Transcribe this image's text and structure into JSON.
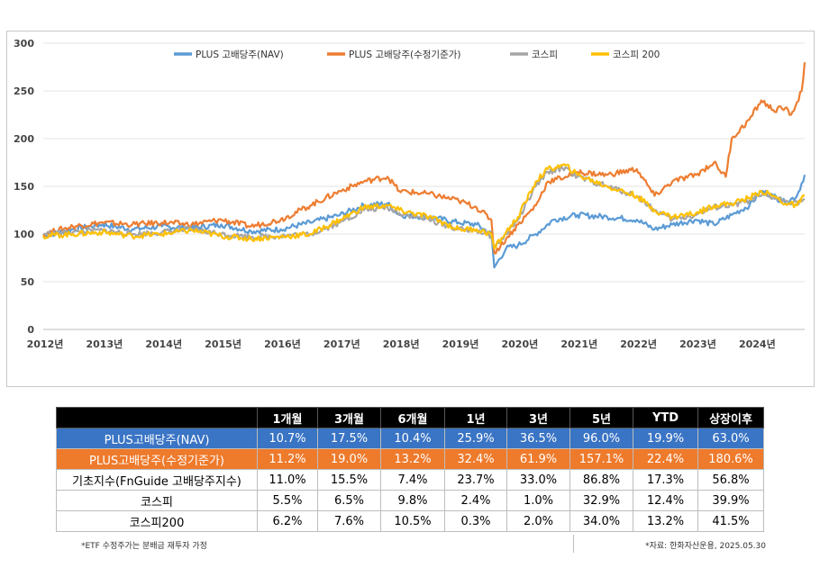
{
  "chart_data": {
    "type": "line",
    "title": "",
    "xlabel": "",
    "ylabel": "",
    "ylim": [
      0,
      300
    ],
    "yticks": [
      0,
      50,
      100,
      150,
      200,
      250,
      300
    ],
    "xlim": [
      2012.0,
      2024.83
    ],
    "xticks": [
      2012,
      2013,
      2014,
      2015,
      2016,
      2017,
      2018,
      2019,
      2020,
      2021,
      2022,
      2023,
      2024
    ],
    "xtick_labels": [
      "2012년",
      "2013년",
      "2014년",
      "2015년",
      "2016년",
      "2017년",
      "2018년",
      "2019년",
      "2020년",
      "2021년",
      "2022년",
      "2023년",
      "2024년"
    ],
    "grid": "horizontal",
    "legend_position": "top-center",
    "series": [
      {
        "name": "PLUS 고배당주(NAV)",
        "color": "#5b9bd5",
        "x": [
          2012.0,
          2012.5,
          2013.0,
          2013.5,
          2014.0,
          2014.5,
          2015.0,
          2015.5,
          2016.0,
          2016.5,
          2017.0,
          2017.4,
          2017.8,
          2018.0,
          2018.5,
          2019.0,
          2019.3,
          2019.55,
          2019.6,
          2019.8,
          2020.0,
          2020.3,
          2020.6,
          2021.0,
          2021.5,
          2022.0,
          2022.3,
          2022.6,
          2023.0,
          2023.3,
          2023.6,
          2023.9,
          2024.1,
          2024.3,
          2024.5,
          2024.7,
          2024.83
        ],
        "y": [
          98,
          105,
          110,
          105,
          108,
          106,
          110,
          103,
          105,
          112,
          120,
          130,
          132,
          120,
          118,
          112,
          110,
          100,
          65,
          85,
          88,
          100,
          115,
          120,
          118,
          115,
          105,
          110,
          115,
          110,
          120,
          130,
          145,
          140,
          133,
          140,
          162
        ]
      },
      {
        "name": "PLUS 고배당주(수정기준가)",
        "color": "#ed7d31",
        "x": [
          2012.0,
          2012.5,
          2013.0,
          2013.5,
          2014.0,
          2014.5,
          2015.0,
          2015.5,
          2016.0,
          2016.5,
          2017.0,
          2017.4,
          2017.8,
          2018.0,
          2018.5,
          2019.0,
          2019.3,
          2019.55,
          2019.6,
          2019.8,
          2020.0,
          2020.3,
          2020.5,
          2020.8,
          2021.0,
          2021.5,
          2022.0,
          2022.3,
          2022.6,
          2023.0,
          2023.3,
          2023.5,
          2023.6,
          2023.9,
          2024.1,
          2024.3,
          2024.5,
          2024.6,
          2024.7,
          2024.78,
          2024.83
        ],
        "y": [
          100,
          108,
          112,
          110,
          112,
          110,
          115,
          108,
          115,
          130,
          145,
          155,
          160,
          145,
          142,
          135,
          128,
          115,
          80,
          95,
          110,
          130,
          155,
          160,
          165,
          162,
          168,
          140,
          155,
          162,
          175,
          160,
          200,
          220,
          240,
          230,
          232,
          225,
          238,
          250,
          280
        ]
      },
      {
        "name": "코스피",
        "color": "#a5a5a5",
        "x": [
          2012.0,
          2012.5,
          2013.0,
          2013.5,
          2014.0,
          2014.5,
          2015.0,
          2015.5,
          2016.0,
          2016.5,
          2017.0,
          2017.4,
          2017.8,
          2018.0,
          2018.5,
          2019.0,
          2019.3,
          2019.55,
          2019.6,
          2019.8,
          2020.0,
          2020.3,
          2020.5,
          2020.8,
          2021.0,
          2021.5,
          2022.0,
          2022.3,
          2022.6,
          2023.0,
          2023.3,
          2023.6,
          2023.9,
          2024.1,
          2024.3,
          2024.5,
          2024.7,
          2024.83
        ],
        "y": [
          100,
          102,
          104,
          100,
          102,
          105,
          100,
          97,
          98,
          100,
          112,
          125,
          128,
          122,
          115,
          105,
          104,
          98,
          85,
          100,
          115,
          150,
          165,
          170,
          160,
          150,
          140,
          125,
          115,
          120,
          128,
          130,
          135,
          140,
          138,
          135,
          133,
          137
        ]
      },
      {
        "name": "코스피 200",
        "color": "#ffc000",
        "x": [
          2012.0,
          2012.5,
          2013.0,
          2013.5,
          2014.0,
          2014.5,
          2015.0,
          2015.5,
          2016.0,
          2016.5,
          2017.0,
          2017.4,
          2017.8,
          2018.0,
          2018.5,
          2019.0,
          2019.3,
          2019.55,
          2019.6,
          2019.8,
          2020.0,
          2020.3,
          2020.5,
          2020.8,
          2021.0,
          2021.5,
          2022.0,
          2022.3,
          2022.6,
          2023.0,
          2023.3,
          2023.6,
          2023.9,
          2024.1,
          2024.3,
          2024.5,
          2024.7,
          2024.83
        ],
        "y": [
          98,
          100,
          102,
          98,
          100,
          104,
          98,
          95,
          97,
          100,
          115,
          128,
          130,
          125,
          118,
          105,
          105,
          100,
          85,
          102,
          118,
          155,
          168,
          172,
          162,
          150,
          140,
          125,
          118,
          122,
          130,
          132,
          138,
          145,
          140,
          132,
          130,
          140
        ]
      }
    ]
  },
  "table": {
    "headers": [
      "",
      "1개월",
      "3개월",
      "6개월",
      "1년",
      "3년",
      "5년",
      "YTD",
      "상장이후"
    ],
    "rows": [
      {
        "label": "PLUS고배당주(NAV)",
        "values": [
          "10.7%",
          "17.5%",
          "10.4%",
          "25.9%",
          "36.5%",
          "96.0%",
          "19.9%",
          "63.0%"
        ]
      },
      {
        "label": "PLUS고배당주(수정기준가)",
        "values": [
          "11.2%",
          "19.0%",
          "13.2%",
          "32.4%",
          "61.9%",
          "157.1%",
          "22.4%",
          "180.6%"
        ]
      },
      {
        "label": "기초지수(FnGuide 고배당주지수)",
        "values": [
          "11.0%",
          "15.5%",
          "7.4%",
          "23.7%",
          "33.0%",
          "86.8%",
          "17.3%",
          "56.8%"
        ]
      },
      {
        "label": "코스피",
        "values": [
          "5.5%",
          "6.5%",
          "9.8%",
          "2.4%",
          "1.0%",
          "32.9%",
          "12.4%",
          "39.9%"
        ]
      },
      {
        "label": "코스피200",
        "values": [
          "6.2%",
          "7.6%",
          "10.5%",
          "0.3%",
          "2.0%",
          "34.0%",
          "13.2%",
          "41.5%"
        ]
      }
    ],
    "row_colors": {
      "nav": "#3a74c4",
      "price": "#ee7a2b",
      "header": "#000000"
    }
  },
  "footnotes": {
    "left": "*ETF 수정주가는 분배금 재투자 가정",
    "right": "*자료: 한화자산운용, 2025.05.30"
  }
}
